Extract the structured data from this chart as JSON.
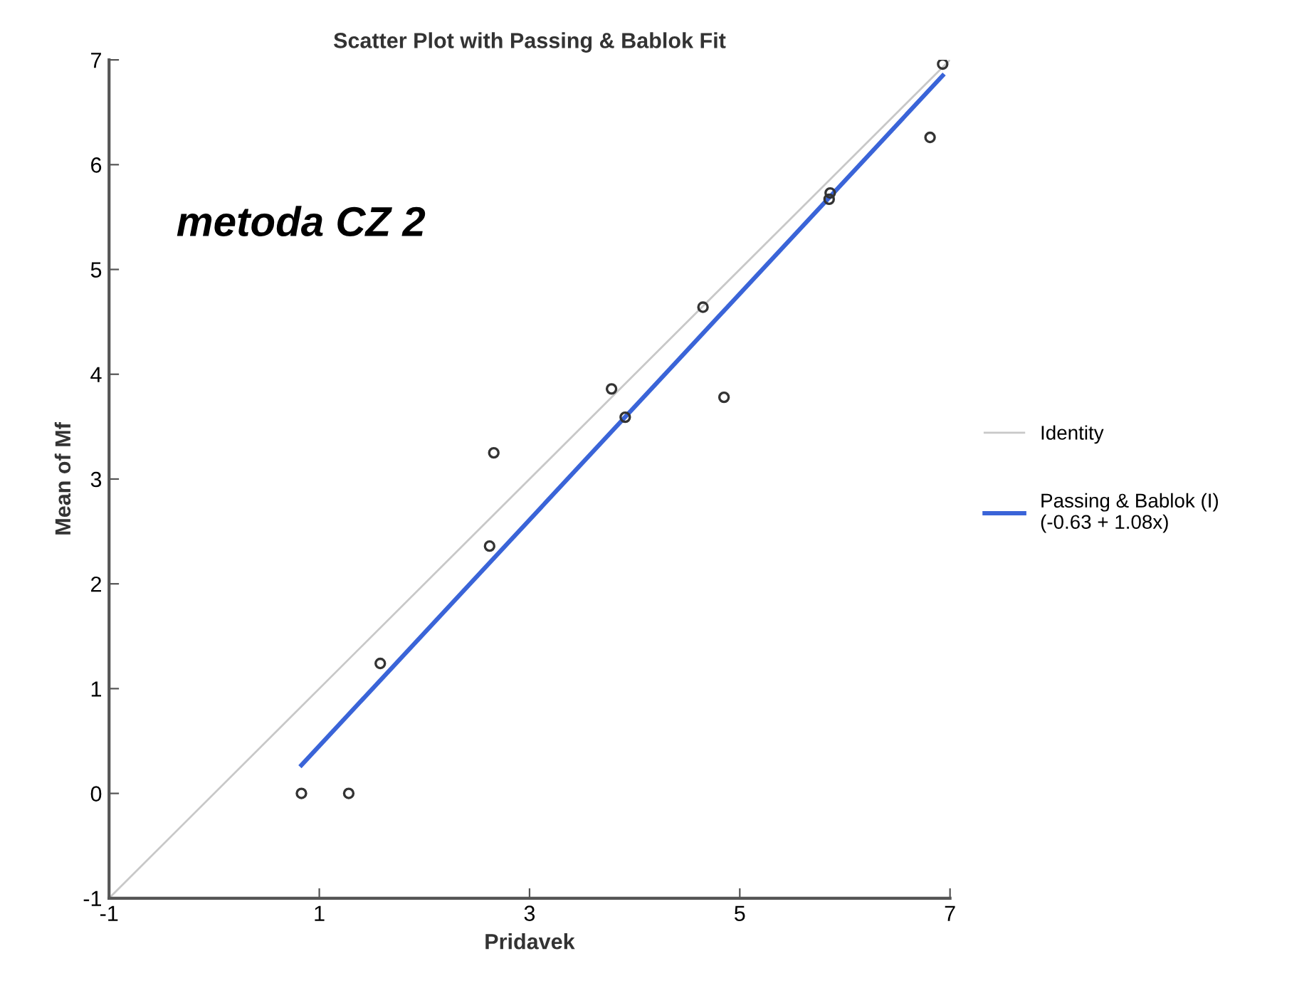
{
  "chart_data": {
    "type": "scatter",
    "title": "Scatter Plot with Passing & Bablok Fit",
    "xlabel": "Pridavek",
    "ylabel": "Mean of Mf",
    "annotations": [
      "metoda CZ 2"
    ],
    "xlim": [
      -1,
      7
    ],
    "xticks": [
      -1,
      1,
      3,
      5,
      7
    ],
    "ylim": [
      -1,
      7
    ],
    "yticks": [
      -1,
      0,
      1,
      2,
      3,
      4,
      5,
      6,
      7
    ],
    "grid": false,
    "legend": "right",
    "series": [
      {
        "color": "#333333",
        "marker": "circle",
        "x": [
          0.83,
          1.28,
          1.58,
          2.62,
          2.66,
          3.78,
          3.91,
          4.65,
          4.85,
          5.86,
          5.85,
          6.81,
          6.93
        ],
        "values": [
          0,
          0,
          1.24,
          2.36,
          3.25,
          3.86,
          3.59,
          4.64,
          3.78,
          5.73,
          5.67,
          6.26,
          6.96
        ]
      },
      {
        "type": "line",
        "name": "Identity",
        "color": "#c8c8c8",
        "x": [
          -1,
          7
        ],
        "values": [
          -1,
          7
        ]
      },
      {
        "type": "line",
        "name": "Passing & Bablok (I)\n(-0.63 + 1.08x)",
        "color": "#3a64d8",
        "x": [
          0.83,
          6.93
        ],
        "values": [
          0.27,
          6.85
        ]
      }
    ]
  }
}
